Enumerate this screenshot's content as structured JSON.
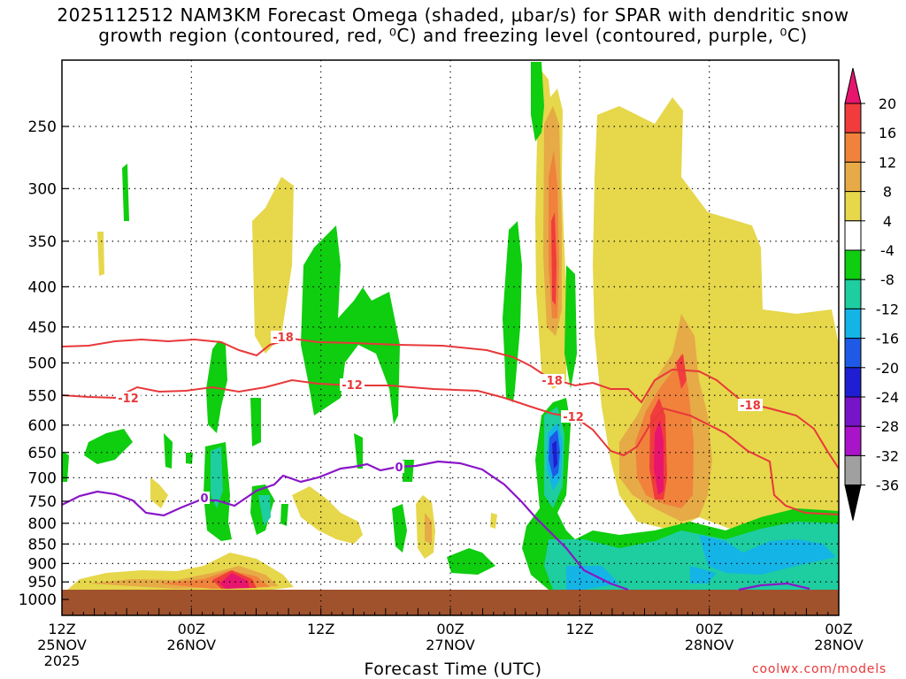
{
  "title": {
    "line1": "2025112512 NAM3KM Forecast Omega (shaded, μbar/s) for SPAR with dendritic snow",
    "line2": "growth region (contoured, red, ⁰C) and freezing level (contoured, purple, ⁰C)"
  },
  "xlabel": "Forecast Time (UTC)",
  "credit": "coolwx.com/models",
  "chart_data": {
    "type": "heatmap",
    "y_axis": {
      "label": "",
      "unit": "hPa",
      "ticks": [
        250,
        300,
        350,
        400,
        450,
        500,
        550,
        600,
        650,
        700,
        750,
        800,
        850,
        900,
        950,
        1000
      ],
      "range": [
        1050,
        200
      ]
    },
    "x_axis": {
      "unit": "forecast hour",
      "range": [
        0,
        72
      ],
      "ticks": [
        {
          "hour": 0,
          "line1": "12Z",
          "line2": "25NOV",
          "line3": "2025"
        },
        {
          "hour": 12,
          "line1": "00Z",
          "line2": "26NOV",
          "line3": ""
        },
        {
          "hour": 24,
          "line1": "12Z",
          "line2": "",
          "line3": ""
        },
        {
          "hour": 36,
          "line1": "00Z",
          "line2": "27NOV",
          "line3": ""
        },
        {
          "hour": 48,
          "line1": "12Z",
          "line2": "",
          "line3": ""
        },
        {
          "hour": 60,
          "line1": "00Z",
          "line2": "28NOV",
          "line3": ""
        }
      ]
    },
    "colorbar": {
      "levels": [
        20,
        16,
        12,
        8,
        4,
        -4,
        -8,
        -12,
        -16,
        -20,
        -24,
        -28,
        -32,
        -36
      ],
      "colors": [
        "#e8156e",
        "#f03c3c",
        "#f0823c",
        "#e6aa46",
        "#e6d74b",
        "#ffffff",
        "#0fcd0f",
        "#1ecda0",
        "#15b4e6",
        "#1e5ae6",
        "#1e1ed2",
        "#7814c8",
        "#aa14c8",
        "#a0a0a0",
        "#000000"
      ],
      "top_color": "#e8156e",
      "bottom_color": "#000000"
    },
    "contours": {
      "red_dgz": {
        "color": "#e8383a",
        "labels": [
          "-18",
          "-12",
          "-12",
          "-18",
          "-12",
          "-18"
        ]
      },
      "purple_freezing": {
        "color": "#8a16c8",
        "labels": [
          "0",
          "0"
        ]
      }
    },
    "ground_color": "#a0522d"
  }
}
